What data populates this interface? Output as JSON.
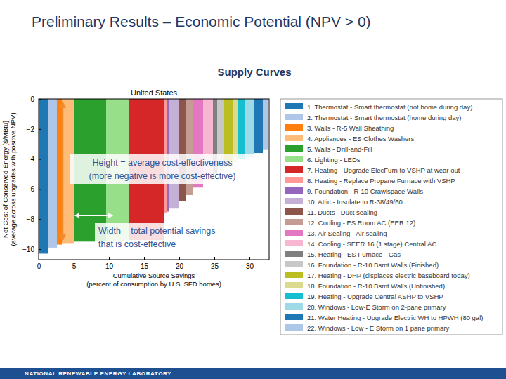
{
  "page": {
    "title": "Preliminary Results – Economic Potential (NPV > 0)",
    "heading": "Supply Curves",
    "footer": "NATIONAL RENEWABLE ENERGY LABORATORY"
  },
  "chart_data": {
    "type": "bar",
    "title": "United States",
    "xlabel": [
      "Cumulative Source Savings",
      "(percent of consumption by U.S. SFD homes)"
    ],
    "ylabel": [
      "Net Cost of Conserved Energy [$/MBtu]",
      "(average across upgrades with positive NPV)"
    ],
    "categories": [
      "1. Thermostat - Smart thermostat (not home during day)",
      "2. Thermostat - Smart thermostat (home during day)",
      "3. Walls - R-5 Wall Sheathing",
      "4. Appliances - ES Clothes Washers",
      "5. Walls - Drill-and-Fill",
      "6. Lighting - LEDs",
      "7. Heating - Upgrade ElecFurn to VSHP at wear out",
      "8. Heating - Replace Propane Furnace with VSHP",
      "9. Foundation - R-10 Crawlspace Walls",
      "10. Attic - Insulate to R-38/49/60",
      "11. Ducts - Duct sealing",
      "12. Cooling - ES Room AC (EER 12)",
      "13. Air Sealing - Air sealing",
      "14. Cooling - SEER 16 (1 stage) Central AC",
      "15. Heating - ES Furnace - Gas",
      "16. Foundation - R-10 Bsmt Walls (Finished)",
      "17. Heating - DHP (displaces electric baseboard today)",
      "18. Foundation - R-10 Bsmt Walls (Unfinished)",
      "19. Heating - Upgrade Central ASHP to VSHP",
      "20. Windows - Low-E Storm on 2-pane primary",
      "21. Water Heating - Upgrade Electric WH to HPWH (80 gal)",
      "22. Windows - Low - E Storm on 1 pane primary"
    ],
    "values": [
      -10.3,
      -9.9,
      -9.7,
      -9.6,
      -9.5,
      -9.5,
      -9.4,
      -7.6,
      -7.5,
      -7.3,
      -6.8,
      -6.4,
      -5.9,
      -5.4,
      -5.0,
      -4.8,
      -4.5,
      -4.2,
      -4.0,
      -3.9,
      -3.6,
      -3.4
    ],
    "widths": [
      1.3,
      1.3,
      0.7,
      1.7,
      4.6,
      3.2,
      5.0,
      0.4,
      0.3,
      1.5,
      1.0,
      1.0,
      1.4,
      1.4,
      0.6,
      1.0,
      1.3,
      0.7,
      0.9,
      1.3,
      1.3,
      0.7
    ],
    "colors": [
      "#1f77b4",
      "#aec7e8",
      "#ff7f0e",
      "#ffbb78",
      "#2ca02c",
      "#98df8a",
      "#d62728",
      "#ff9896",
      "#9467bd",
      "#c5b0d5",
      "#8c564b",
      "#c49c94",
      "#e377c2",
      "#f7b6d2",
      "#7f7f7f",
      "#c7c7c7",
      "#bcbd22",
      "#dbdb8d",
      "#17becf",
      "#9edae5",
      "#1f77b4",
      "#aec7e8"
    ],
    "xlim": [
      0,
      32.8
    ],
    "xticks": [
      0,
      5,
      10,
      15,
      20,
      25,
      30
    ],
    "ylim": [
      -10.7,
      0
    ],
    "yticks": [
      -10,
      -8,
      -6,
      -4,
      -2,
      0
    ],
    "legend": "right",
    "annotations": [
      [
        "Height = average cost-effectiveness",
        "(more negative is more cost-effective)"
      ],
      [
        "Width = total potential savings",
        "that is cost-effective"
      ]
    ]
  }
}
